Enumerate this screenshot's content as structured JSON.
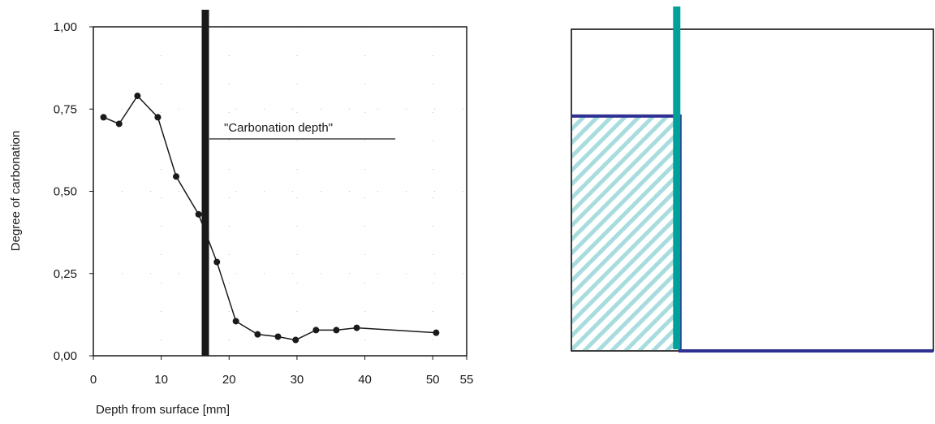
{
  "chart_data": [
    {
      "type": "line",
      "xlabel": "Depth from surface [mm]",
      "ylabel": "Degree of carbonation",
      "xlim": [
        0,
        55
      ],
      "ylim": [
        0,
        1
      ],
      "x_ticks": [
        0,
        10,
        20,
        30,
        40,
        50,
        55
      ],
      "x_tick_labels": [
        "0",
        "10",
        "20",
        "30",
        "40",
        "50",
        "55"
      ],
      "y_ticks": [
        0,
        0.25,
        0.5,
        0.75,
        1.0
      ],
      "y_tick_labels": [
        "0,00",
        "0,25",
        "0,50",
        "0,75",
        "1,00"
      ],
      "grid": "dotted",
      "series": [
        {
          "x": [
            1.5,
            3.8,
            6.5,
            9.5,
            12.2,
            15.5,
            18.2,
            21.0,
            24.2,
            27.2,
            29.8,
            32.8,
            35.8,
            38.8,
            50.5
          ],
          "y": [
            0.725,
            0.705,
            0.79,
            0.725,
            0.545,
            0.43,
            0.285,
            0.105,
            0.065,
            0.058,
            0.048,
            0.078,
            0.078,
            0.085,
            0.07
          ]
        }
      ],
      "marker_line_x": 16.5,
      "annotation": "\"Carbonation depth\""
    },
    {
      "type": "area",
      "step_x": 0.3,
      "high_level": 0.73,
      "low_level": 0.0,
      "colors": {
        "step_line": "#2e3192",
        "marker_line": "#00a19a",
        "hatch": "#a8dcde",
        "frame": "#000000"
      }
    }
  ]
}
